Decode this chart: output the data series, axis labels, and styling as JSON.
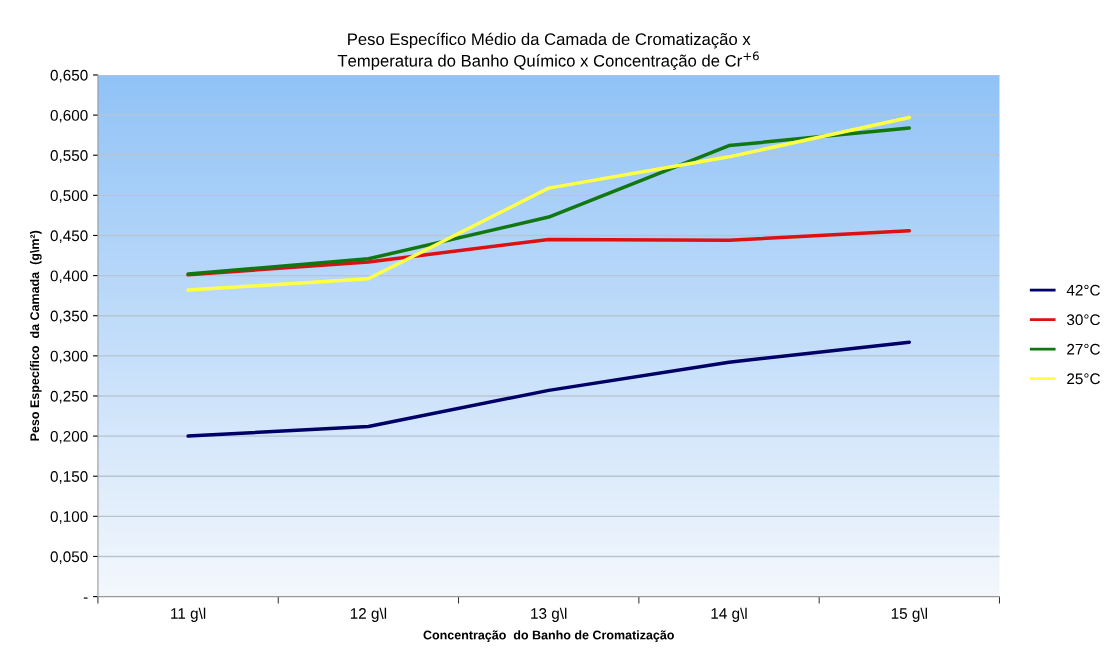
{
  "chart_data": {
    "type": "line",
    "title": "Peso Específico Médio da Camada de Cromatização x\nTemperatura do Banho Químico x Concentração de Cr$^{+6}$",
    "xlabel": "Concentração  do Banho de Cromatização",
    "ylabel": "Peso Específico  da Camada  (g\\m²)",
    "categories": [
      "11 g\\l",
      "12 g\\l",
      "13 g\\l",
      "14 g\\l",
      "15 g\\l"
    ],
    "series": [
      {
        "name": "42°C",
        "color": "#000066",
        "values": [
          0.2,
          0.212,
          0.257,
          0.292,
          0.317
        ]
      },
      {
        "name": "30°C",
        "color": "#dd1111",
        "values": [
          0.401,
          0.417,
          0.445,
          0.444,
          0.456
        ]
      },
      {
        "name": "27°C",
        "color": "#117711",
        "values": [
          0.402,
          0.421,
          0.473,
          0.562,
          0.584
        ]
      },
      {
        "name": "25°C",
        "color": "#ffff44",
        "values": [
          0.382,
          0.396,
          0.509,
          0.548,
          0.597
        ]
      }
    ],
    "ylim": [
      0,
      0.65
    ],
    "yticks": [
      {
        "value": 0,
        "label": "-"
      },
      {
        "value": 0.05,
        "label": "0,050"
      },
      {
        "value": 0.1,
        "label": "0,100"
      },
      {
        "value": 0.15,
        "label": "0,150"
      },
      {
        "value": 0.2,
        "label": "0,200"
      },
      {
        "value": 0.25,
        "label": "0,250"
      },
      {
        "value": 0.3,
        "label": "0,300"
      },
      {
        "value": 0.35,
        "label": "0,350"
      },
      {
        "value": 0.4,
        "label": "0,400"
      },
      {
        "value": 0.45,
        "label": "0,450"
      },
      {
        "value": 0.5,
        "label": "0,500"
      },
      {
        "value": 0.55,
        "label": "0,550"
      },
      {
        "value": 0.6,
        "label": "0,600"
      },
      {
        "value": 0.65,
        "label": "0,650"
      }
    ],
    "grid": "y",
    "legend": "right",
    "marker": "none",
    "line_style": "solid"
  }
}
